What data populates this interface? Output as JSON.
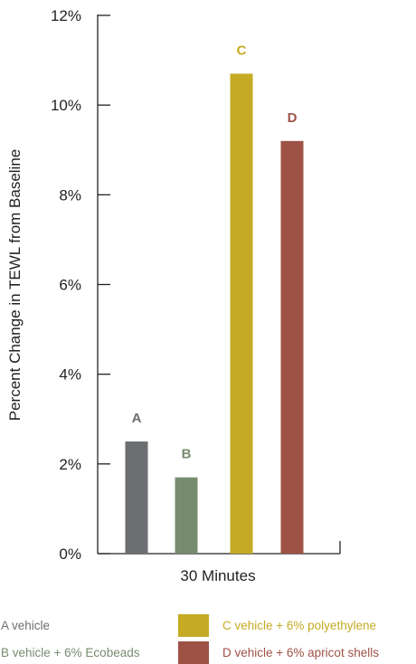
{
  "chart_data": {
    "type": "bar",
    "xlabel": "30 Minutes",
    "ylabel": "Percent Change in TEWL from Baseline",
    "ylim": [
      0,
      12
    ],
    "yticks": [
      {
        "value": 0,
        "label": "0%"
      },
      {
        "value": 2,
        "label": "2%"
      },
      {
        "value": 4,
        "label": "4%"
      },
      {
        "value": 6,
        "label": "6%"
      },
      {
        "value": 8,
        "label": "8%"
      },
      {
        "value": 10,
        "label": "10%"
      },
      {
        "value": 12,
        "label": "12%"
      }
    ],
    "grid": false,
    "legend_position": "bottom",
    "series": [
      {
        "label": "A",
        "value": 2.5,
        "color": "#6d6e71",
        "legend": "A vehicle"
      },
      {
        "label": "B",
        "value": 1.7,
        "color": "#778c6e",
        "legend": "B vehicle + 6% Ecobeads"
      },
      {
        "label": "C",
        "value": 10.7,
        "color": "#c5ab24",
        "legend": "C vehicle + 6% polyethylene"
      },
      {
        "label": "D",
        "value": 9.2,
        "color": "#9e5246",
        "legend": "D vehicle + 6% apricot shells"
      }
    ]
  }
}
